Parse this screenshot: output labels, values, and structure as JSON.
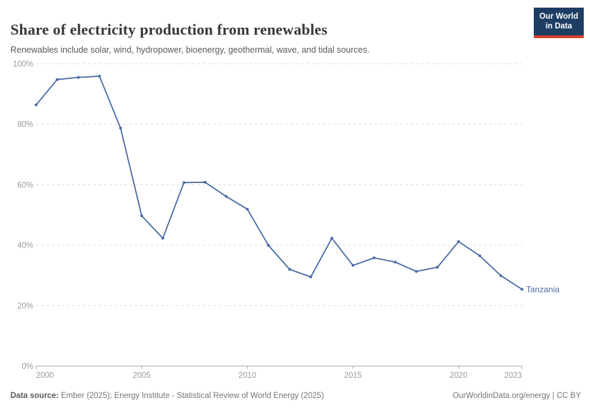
{
  "header": {
    "title": "Share of electricity production from renewables",
    "subtitle": "Renewables include solar, wind, hydropower, bioenergy, geothermal, wave, and tidal sources.",
    "logo": {
      "line1": "Our World",
      "line2": "in Data",
      "bg_color": "#1d3d63",
      "accent_color": "#dc3e32"
    }
  },
  "chart_data": {
    "type": "line",
    "title": "Share of electricity production from renewables",
    "x": [
      2000,
      2001,
      2002,
      2003,
      2004,
      2005,
      2006,
      2007,
      2008,
      2009,
      2010,
      2011,
      2012,
      2013,
      2014,
      2015,
      2016,
      2017,
      2018,
      2019,
      2020,
      2021,
      2022,
      2023
    ],
    "series": [
      {
        "name": "Tanzania",
        "color": "#4a6aa5",
        "values": [
          86.4,
          94.8,
          95.5,
          95.9,
          78.7,
          49.7,
          42.3,
          60.7,
          60.8,
          56.1,
          51.9,
          39.9,
          32.0,
          29.5,
          42.3,
          33.3,
          35.8,
          34.4,
          31.3,
          32.7,
          41.2,
          36.5,
          29.9,
          25.4
        ]
      }
    ],
    "xlim": [
      2000,
      2023
    ],
    "ylim": [
      0,
      100
    ],
    "x_ticks": [
      2000,
      2005,
      2010,
      2015,
      2020,
      2023
    ],
    "x_tick_labels": [
      "2000",
      "2005",
      "2010",
      "2015",
      "2020",
      "2023"
    ],
    "y_ticks": [
      0,
      20,
      40,
      60,
      80,
      100
    ],
    "y_tick_labels": [
      "0%",
      "20%",
      "40%",
      "60%",
      "80%",
      "100%"
    ],
    "grid": "horizontal-dashed",
    "legend": "end-of-line-label",
    "end_label": "Tanzania",
    "grid_color": "#dadada",
    "axis_color": "#a8a8a8",
    "tick_label_color": "#999999"
  },
  "footer": {
    "datasource_label": "Data source:",
    "datasource_rest": " Ember (2025); Energy Institute - Statistical Review of World Energy (2025)",
    "credit": "OurWorldinData.org/energy | CC BY"
  }
}
